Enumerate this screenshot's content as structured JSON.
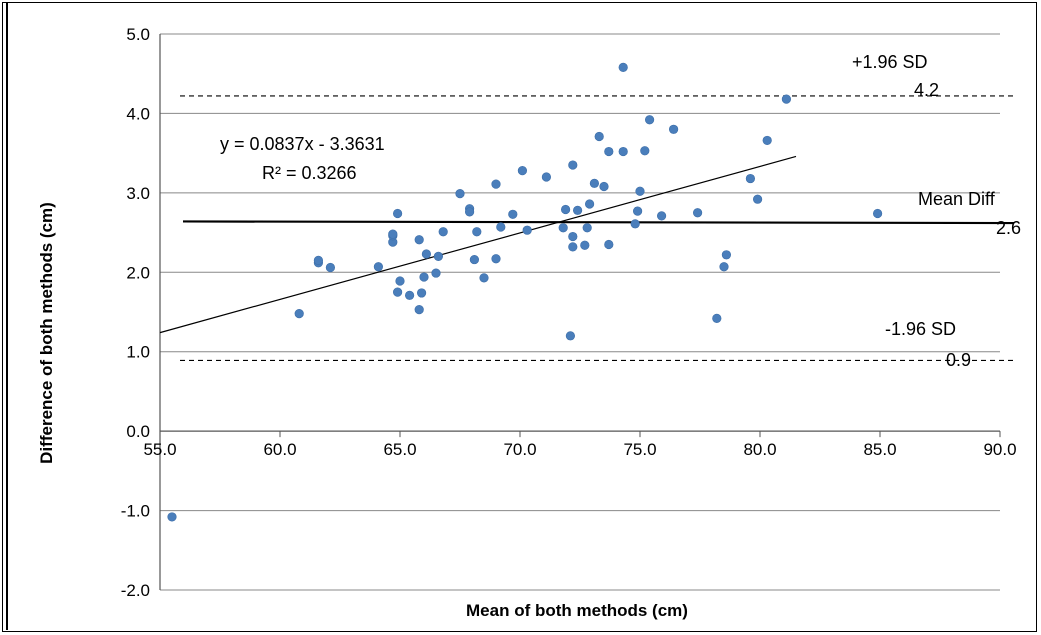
{
  "chart_data": {
    "type": "scatter",
    "xlabel": "Mean of both methods (cm)",
    "ylabel": "Difference of both methods (cm)",
    "xlim": [
      55,
      90
    ],
    "ylim": [
      -2,
      5
    ],
    "x_ticks": [
      "55.0",
      "60.0",
      "65.0",
      "70.0",
      "75.0",
      "80.0",
      "85.0",
      "90.0"
    ],
    "y_ticks": [
      "5.0",
      "4.0",
      "3.0",
      "2.0",
      "1.0",
      "0.0",
      "-1.0",
      "-2.0"
    ],
    "grid": "horizontal",
    "points": [
      [
        55.5,
        -1.08
      ],
      [
        60.8,
        1.48
      ],
      [
        61.6,
        2.12
      ],
      [
        61.6,
        2.15
      ],
      [
        62.1,
        2.06
      ],
      [
        64.1,
        2.07
      ],
      [
        64.7,
        2.38
      ],
      [
        64.7,
        2.46
      ],
      [
        64.7,
        2.48
      ],
      [
        64.9,
        2.74
      ],
      [
        64.9,
        1.75
      ],
      [
        65.0,
        1.89
      ],
      [
        65.4,
        1.71
      ],
      [
        65.8,
        2.41
      ],
      [
        65.8,
        1.53
      ],
      [
        65.9,
        1.74
      ],
      [
        66.0,
        1.94
      ],
      [
        66.1,
        2.23
      ],
      [
        66.5,
        1.99
      ],
      [
        66.6,
        2.2
      ],
      [
        66.8,
        2.51
      ],
      [
        67.5,
        2.99
      ],
      [
        67.9,
        2.8
      ],
      [
        67.9,
        2.76
      ],
      [
        68.1,
        2.16
      ],
      [
        68.2,
        2.51
      ],
      [
        68.5,
        1.93
      ],
      [
        69.0,
        3.11
      ],
      [
        69.0,
        2.17
      ],
      [
        69.2,
        2.57
      ],
      [
        69.7,
        2.73
      ],
      [
        70.1,
        3.28
      ],
      [
        70.3,
        2.53
      ],
      [
        71.1,
        3.2
      ],
      [
        71.8,
        2.56
      ],
      [
        71.9,
        2.79
      ],
      [
        72.2,
        3.35
      ],
      [
        72.2,
        2.32
      ],
      [
        72.2,
        2.45
      ],
      [
        72.1,
        1.2
      ],
      [
        72.4,
        2.78
      ],
      [
        72.7,
        2.34
      ],
      [
        72.8,
        2.56
      ],
      [
        72.9,
        2.86
      ],
      [
        73.1,
        3.12
      ],
      [
        73.3,
        3.71
      ],
      [
        73.5,
        3.08
      ],
      [
        73.7,
        3.52
      ],
      [
        73.7,
        2.35
      ],
      [
        74.3,
        3.52
      ],
      [
        74.3,
        4.58
      ],
      [
        74.8,
        2.61
      ],
      [
        74.9,
        2.77
      ],
      [
        75.0,
        3.02
      ],
      [
        75.2,
        3.53
      ],
      [
        75.4,
        3.92
      ],
      [
        75.9,
        2.71
      ],
      [
        76.4,
        3.8
      ],
      [
        77.4,
        2.75
      ],
      [
        78.2,
        1.42
      ],
      [
        78.5,
        2.07
      ],
      [
        78.6,
        2.22
      ],
      [
        79.6,
        3.18
      ],
      [
        79.9,
        2.92
      ],
      [
        80.3,
        3.66
      ],
      [
        81.1,
        4.18
      ],
      [
        84.9,
        2.74
      ]
    ],
    "trendline": {
      "slope": 0.0837,
      "intercept": -3.3631,
      "x_from": 55,
      "x_to": 81.5
    },
    "mean_line": {
      "label": "Mean Diff",
      "value_label": "2.6",
      "y_start": 2.64,
      "y_end": 2.62
    },
    "upper_loa": {
      "label": "+1.96 SD",
      "value_label": "4.2",
      "y": 4.22
    },
    "lower_loa": {
      "label": "-1.96 SD",
      "value_label": "0.9",
      "y": 0.89
    },
    "equation": "y = 0.0837x - 3.3631",
    "r_squared": "R² = 0.3266",
    "colors": {
      "points": "#4a7ebb",
      "grid": "#888888",
      "lines": "#000000"
    }
  }
}
